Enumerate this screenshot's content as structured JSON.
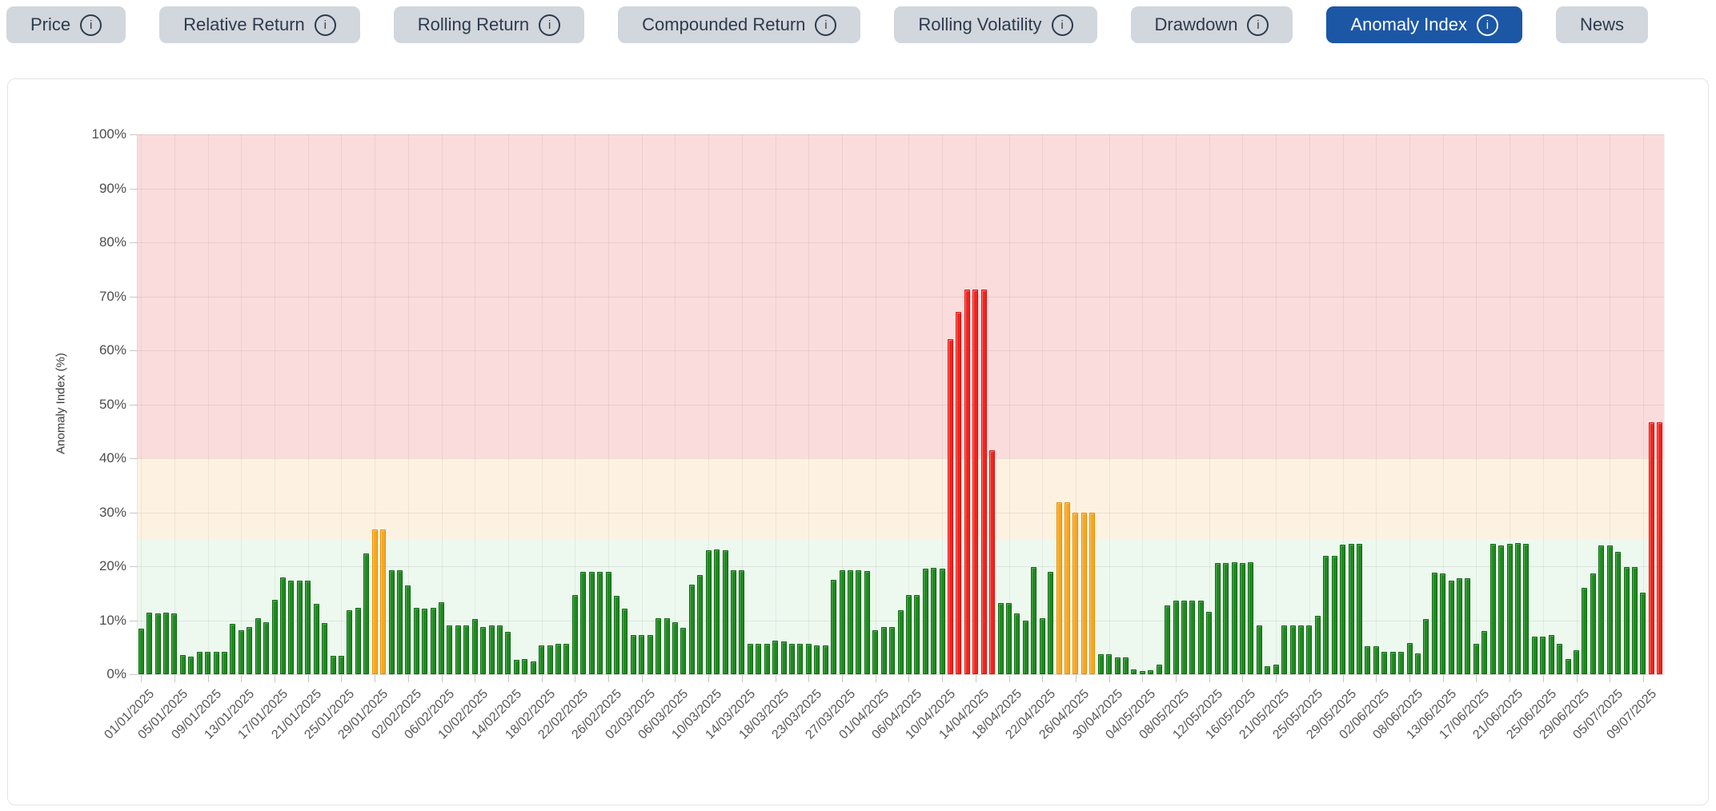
{
  "tabs": {
    "active_bg": "#1c57a6",
    "inactive_bg": "#d2d6dd",
    "items": [
      {
        "label": "Price",
        "slug": "price",
        "info": true,
        "active": false
      },
      {
        "label": "Relative Return",
        "slug": "relative-return",
        "info": true,
        "active": false
      },
      {
        "label": "Rolling Return",
        "slug": "rolling-return",
        "info": true,
        "active": false
      },
      {
        "label": "Compounded Return",
        "slug": "compounded-return",
        "info": true,
        "active": false
      },
      {
        "label": "Rolling Volatility",
        "slug": "rolling-volatility",
        "info": true,
        "active": false
      },
      {
        "label": "Drawdown",
        "slug": "drawdown",
        "info": true,
        "active": false
      },
      {
        "label": "Anomaly Index",
        "slug": "anomaly-index",
        "info": true,
        "active": true
      },
      {
        "label": "News",
        "slug": "news",
        "info": false,
        "active": false
      }
    ]
  },
  "chart_data": {
    "type": "bar",
    "title": "",
    "xlabel": "",
    "ylabel": "Anomaly Index (%)",
    "ylim": [
      0,
      100
    ],
    "ytick_step": 10,
    "ytick_suffix": "%",
    "grid": true,
    "legend_position": "none",
    "xtick_every": 4,
    "xtick_labels": [
      "01/01/2025",
      "05/01/2025",
      "09/01/2025",
      "13/01/2025",
      "17/01/2025",
      "21/01/2025",
      "25/01/2025",
      "29/01/2025",
      "02/02/2025",
      "06/02/2025",
      "10/02/2025",
      "14/02/2025",
      "18/02/2025",
      "22/02/2025",
      "26/02/2025",
      "02/03/2025",
      "06/03/2025",
      "10/03/2025",
      "14/03/2025",
      "18/03/2025",
      "23/03/2025",
      "27/03/2025",
      "01/04/2025",
      "06/04/2025",
      "10/04/2025",
      "14/04/2025",
      "18/04/2025",
      "22/04/2025",
      "26/04/2025",
      "30/04/2025",
      "04/05/2025",
      "08/05/2025",
      "12/05/2025",
      "16/05/2025",
      "21/05/2025",
      "25/05/2025",
      "29/05/2025",
      "02/06/2025",
      "08/06/2025",
      "13/06/2025",
      "17/06/2025",
      "21/06/2025",
      "25/06/2025",
      "29/06/2025",
      "05/07/2025",
      "09/07/2025"
    ],
    "values": [
      8.4,
      11.4,
      11.3,
      11.4,
      11.3,
      3.5,
      3.2,
      4.1,
      4.1,
      4.1,
      4.1,
      9.3,
      8.2,
      8.8,
      10.4,
      9.7,
      13.8,
      17.9,
      17.3,
      17.3,
      17.3,
      13.0,
      9.5,
      3.4,
      3.4,
      11.8,
      12.3,
      22.3,
      26.8,
      26.8,
      19.2,
      19.2,
      16.5,
      12.3,
      12.2,
      12.3,
      13.4,
      9.1,
      9.1,
      9.1,
      10.2,
      8.8,
      9.1,
      9.1,
      7.8,
      2.7,
      2.8,
      2.3,
      5.4,
      5.4,
      5.6,
      5.6,
      14.7,
      18.9,
      18.9,
      19.0,
      18.9,
      14.5,
      12.2,
      7.3,
      7.3,
      7.3,
      10.3,
      10.3,
      9.6,
      8.6,
      16.6,
      18.4,
      23.0,
      23.1,
      23.0,
      19.3,
      19.3,
      5.7,
      5.7,
      5.6,
      6.2,
      6.1,
      5.6,
      5.6,
      5.6,
      5.3,
      5.3,
      17.5,
      19.2,
      19.2,
      19.2,
      19.1,
      8.2,
      8.8,
      8.8,
      11.8,
      14.6,
      14.6,
      19.6,
      19.7,
      19.6,
      62.1,
      67.1,
      71.3,
      71.3,
      71.3,
      41.5,
      13.2,
      13.2,
      11.2,
      10.0,
      19.8,
      10.3,
      19.0,
      31.9,
      31.9,
      29.9,
      29.9,
      29.9,
      3.7,
      3.7,
      3.1,
      3.1,
      0.9,
      0.6,
      0.8,
      1.8,
      12.8,
      13.6,
      13.6,
      13.6,
      13.6,
      11.6,
      20.6,
      20.6,
      20.7,
      20.6,
      20.7,
      9.1,
      1.5,
      1.8,
      9.0,
      9.1,
      9.1,
      9.1,
      10.8,
      22.0,
      22.0,
      24.0,
      24.1,
      24.1,
      5.2,
      5.2,
      4.1,
      4.1,
      4.1,
      5.8,
      3.8,
      10.2,
      18.8,
      18.7,
      17.3,
      17.8,
      17.8,
      5.7,
      8.0,
      24.1,
      23.9,
      24.1,
      24.3,
      24.2,
      7.0,
      7.0,
      7.2,
      5.6,
      2.8,
      4.5,
      16.0,
      18.6,
      23.9,
      23.8,
      22.6,
      19.8,
      19.8,
      15.1,
      46.7,
      46.7
    ],
    "zones": [
      {
        "from": 0,
        "to": 25,
        "bar_color": "#1e8a1f",
        "band_color": "#edf8ef"
      },
      {
        "from": 25,
        "to": 40,
        "bar_color": "#f9a61e",
        "band_color": "#fdf2e2"
      },
      {
        "from": 40,
        "to": 100,
        "bar_color": "#f5221b",
        "band_color": "#fadcdc"
      }
    ]
  }
}
